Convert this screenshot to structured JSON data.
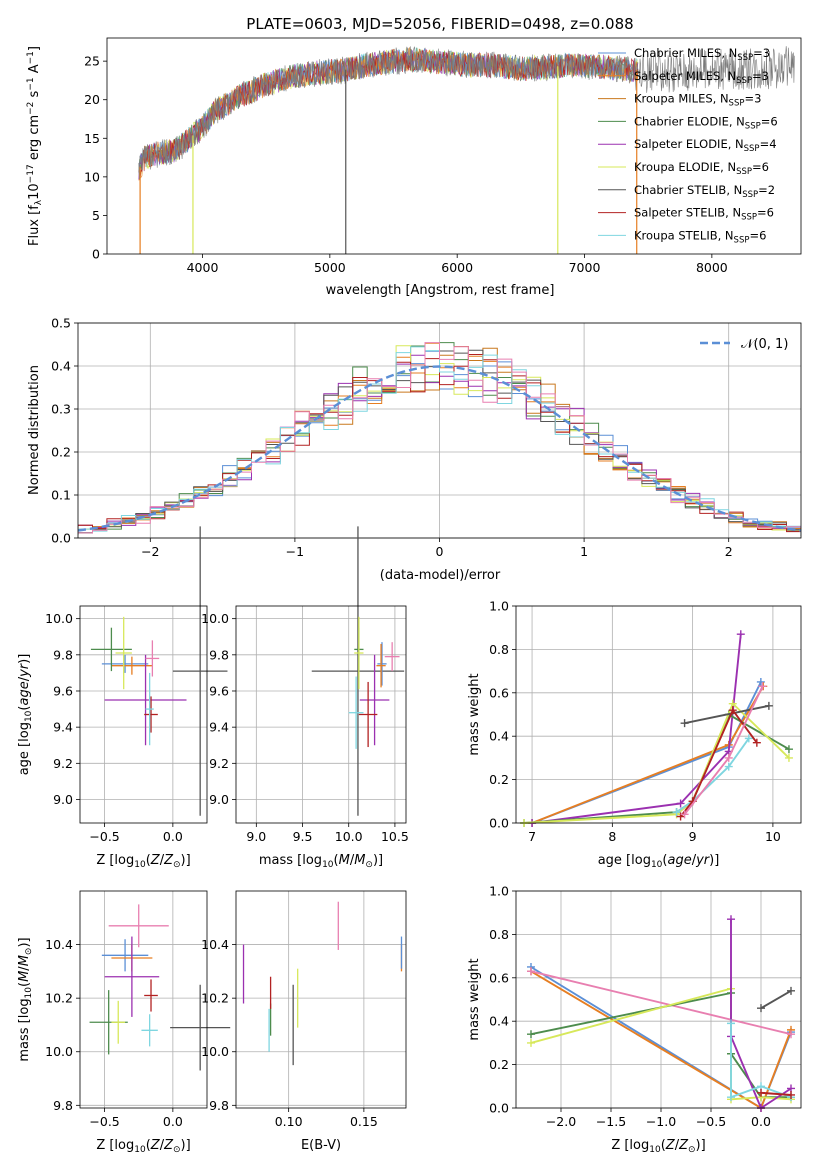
{
  "title": "PLATE=0603, MJD=52056, FIBERID=0498, z=0.088",
  "colors": {
    "Chabrier MILES": "#5b8fd6",
    "Salpeter MILES": "#e67e22",
    "Kroupa MILES": "#c9781e",
    "Chabrier ELODIE": "#4d8c4d",
    "Salpeter ELODIE": "#9b30b0",
    "Kroupa ELODIE": "#d7e85a",
    "Chabrier STELIB": "#555555",
    "Salpeter STELIB": "#b22222",
    "Kroupa STELIB": "#7fd6e0",
    "extra pink": "#e87fb0"
  },
  "chart_data": [
    {
      "type": "line",
      "title": "PLATE=0603, MJD=52056, FIBERID=0498, z=0.088",
      "xlabel": "wavelength [Angstrom, rest frame]",
      "ylabel": "Flux [f_λ 10^-17 erg cm^-2 s^-1 A^-1]",
      "xlim": [
        3250,
        8700
      ],
      "ylim": [
        0,
        28
      ],
      "xticks": [
        4000,
        5000,
        6000,
        7000,
        8000
      ],
      "yticks": [
        0,
        5,
        10,
        15,
        20,
        25
      ],
      "legend_loc": "upper right",
      "legend": [
        {
          "name": "Chabrier MILES",
          "label": "Chabrier MILES, N",
          "sub": "SSP",
          "suffix": "=3"
        },
        {
          "name": "Salpeter MILES",
          "label": "Salpeter MILES, N",
          "sub": "SSP",
          "suffix": "=3"
        },
        {
          "name": "Kroupa MILES",
          "label": "Kroupa MILES, N",
          "sub": "SSP",
          "suffix": "=3"
        },
        {
          "name": "Chabrier ELODIE",
          "label": "Chabrier ELODIE, N",
          "sub": "SSP",
          "suffix": "=6"
        },
        {
          "name": "Salpeter ELODIE",
          "label": "Salpeter ELODIE, N",
          "sub": "SSP",
          "suffix": "=4"
        },
        {
          "name": "Kroupa ELODIE",
          "label": "Kroupa ELODIE, N",
          "sub": "SSP",
          "suffix": "=6"
        },
        {
          "name": "Chabrier STELIB",
          "label": "Chabrier STELIB, N",
          "sub": "SSP",
          "suffix": "=2"
        },
        {
          "name": "Salpeter STELIB",
          "label": "Salpeter STELIB, N",
          "sub": "SSP",
          "suffix": "=6"
        },
        {
          "name": "Kroupa STELIB",
          "label": "Kroupa STELIB, N",
          "sub": "SSP",
          "suffix": "=6"
        }
      ],
      "continuum": [
        [
          3500,
          11
        ],
        [
          3550,
          12.5
        ],
        [
          3650,
          13
        ],
        [
          3800,
          13.5
        ],
        [
          3900,
          15
        ],
        [
          4000,
          16.5
        ],
        [
          4100,
          18.5
        ],
        [
          4200,
          19.5
        ],
        [
          4300,
          20.5
        ],
        [
          4500,
          22
        ],
        [
          4700,
          23
        ],
        [
          4900,
          23.5
        ],
        [
          5100,
          23.8
        ],
        [
          5300,
          24.5
        ],
        [
          5500,
          25
        ],
        [
          5700,
          25.2
        ],
        [
          5900,
          24.8
        ],
        [
          6100,
          24.5
        ],
        [
          6300,
          24.5
        ],
        [
          6500,
          24
        ],
        [
          6700,
          24.2
        ],
        [
          6900,
          24.5
        ],
        [
          7100,
          24.3
        ],
        [
          7300,
          24
        ],
        [
          7400,
          23.8
        ]
      ]
    },
    {
      "type": "step",
      "xlabel": "(data-model)/error",
      "ylabel": "Normed distribution",
      "xlim": [
        -2.5,
        2.5
      ],
      "ylim": [
        0,
        0.5
      ],
      "xticks": [
        -2,
        -1,
        0,
        1,
        2
      ],
      "yticks": [
        0.0,
        0.1,
        0.2,
        0.3,
        0.4,
        0.5
      ],
      "legend": {
        "name": "N(0,1)",
        "label": "𝒩(0, 1)"
      },
      "bin_width": 0.1
    },
    {
      "type": "scatter",
      "xlabel": "Z [log10(Z/Z⊙)]",
      "ylabel": "age [log10(age/yr)]",
      "xlim": [
        -0.68,
        0.25
      ],
      "ylim": [
        8.87,
        10.07
      ],
      "xticks": [
        -0.5,
        0.0
      ],
      "yticks": [
        9.0,
        9.2,
        9.4,
        9.6,
        9.8,
        10.0
      ],
      "points": [
        {
          "s": "Chabrier MILES",
          "x": -0.35,
          "y": 9.75,
          "xerr": 0.17,
          "yerr": 0.05
        },
        {
          "s": "Salpeter MILES",
          "x": -0.3,
          "y": 9.74,
          "xerr": 0.15,
          "yerr": 0.05
        },
        {
          "s": "Chabrier ELODIE",
          "x": -0.45,
          "y": 9.83,
          "xerr": 0.15,
          "yerr": 0.12
        },
        {
          "s": "Kroupa ELODIE",
          "x": -0.36,
          "y": 9.81,
          "xerr": 0.06,
          "yerr": 0.2
        },
        {
          "s": "Salpeter ELODIE",
          "x": -0.2,
          "y": 9.55,
          "xerr": 0.3,
          "yerr": 0.25
        },
        {
          "s": "Salpeter STELIB",
          "x": -0.16,
          "y": 9.47,
          "xerr": 0.05,
          "yerr": 0.1
        },
        {
          "s": "Kroupa STELIB",
          "x": -0.17,
          "y": 9.5,
          "xerr": 0.03,
          "yerr": 0.2
        },
        {
          "s": "extra pink",
          "x": -0.15,
          "y": 9.78,
          "xerr": 0.05,
          "yerr": 0.1
        },
        {
          "s": "Chabrier STELIB",
          "x": 0.2,
          "y": 9.71,
          "xerr": 0.2,
          "yerr": 0.8
        }
      ]
    },
    {
      "type": "scatter",
      "xlabel": "mass [log10(M/M⊙)]",
      "ylabel": "",
      "xlim": [
        8.78,
        10.62
      ],
      "ylim": [
        8.87,
        10.07
      ],
      "xticks": [
        9.0,
        9.5,
        10.0,
        10.5
      ],
      "yticks": [
        9.0,
        9.2,
        9.4,
        9.6,
        9.8,
        10.0
      ],
      "points": [
        {
          "s": "Chabrier STELIB",
          "x": 10.1,
          "y": 9.71,
          "xerr": 0.5,
          "yerr": 0.8
        },
        {
          "s": "Kroupa STELIB",
          "x": 10.08,
          "y": 9.48,
          "xerr": 0.08,
          "yerr": 0.2
        },
        {
          "s": "Chabrier ELODIE",
          "x": 10.11,
          "y": 9.83,
          "xerr": 0.05,
          "yerr": 0.12
        },
        {
          "s": "Kroupa ELODIE",
          "x": 10.11,
          "y": 9.81,
          "xerr": 0.05,
          "yerr": 0.2
        },
        {
          "s": "Salpeter ELODIE",
          "x": 10.28,
          "y": 9.55,
          "xerr": 0.16,
          "yerr": 0.25
        },
        {
          "s": "Salpeter STELIB",
          "x": 10.21,
          "y": 9.47,
          "xerr": 0.1,
          "yerr": 0.18
        },
        {
          "s": "Chabrier MILES",
          "x": 10.36,
          "y": 9.75,
          "xerr": 0.05,
          "yerr": 0.12
        },
        {
          "s": "Salpeter MILES",
          "x": 10.35,
          "y": 9.74,
          "xerr": 0.05,
          "yerr": 0.12
        },
        {
          "s": "extra pink",
          "x": 10.47,
          "y": 9.79,
          "xerr": 0.08,
          "yerr": 0.08
        }
      ]
    },
    {
      "type": "line",
      "xlabel": "age [log10(age/yr)]",
      "ylabel": "mass weight",
      "xlim": [
        6.8,
        10.35
      ],
      "ylim": [
        0,
        1
      ],
      "xticks": [
        7,
        8,
        9,
        10
      ],
      "yticks": [
        0.0,
        0.2,
        0.4,
        0.6,
        0.8,
        1.0
      ],
      "series": [
        {
          "s": "Chabrier MILES",
          "pts": [
            [
              7.0,
              0.0
            ],
            [
              9.45,
              0.35
            ],
            [
              9.85,
              0.65
            ]
          ]
        },
        {
          "s": "Salpeter MILES",
          "pts": [
            [
              7.0,
              0.0
            ],
            [
              9.45,
              0.36
            ],
            [
              9.88,
              0.63
            ]
          ]
        },
        {
          "s": "Salpeter ELODIE",
          "pts": [
            [
              7.0,
              0.0
            ],
            [
              8.85,
              0.09
            ],
            [
              9.45,
              0.33
            ],
            [
              9.6,
              0.87
            ]
          ]
        },
        {
          "s": "Chabrier ELODIE",
          "pts": [
            [
              6.9,
              0.0
            ],
            [
              8.8,
              0.05
            ],
            [
              9.0,
              0.1
            ],
            [
              9.45,
              0.5
            ],
            [
              10.2,
              0.34
            ]
          ]
        },
        {
          "s": "Kroupa ELODIE",
          "pts": [
            [
              6.9,
              0.0
            ],
            [
              8.8,
              0.04
            ],
            [
              9.0,
              0.1
            ],
            [
              9.5,
              0.55
            ],
            [
              10.2,
              0.3
            ]
          ]
        },
        {
          "s": "Chabrier STELIB",
          "pts": [
            [
              8.9,
              0.46
            ],
            [
              9.95,
              0.54
            ]
          ]
        },
        {
          "s": "Kroupa STELIB",
          "pts": [
            [
              8.8,
              0.05
            ],
            [
              9.0,
              0.1
            ],
            [
              9.45,
              0.26
            ],
            [
              9.7,
              0.39
            ]
          ]
        },
        {
          "s": "Salpeter STELIB",
          "pts": [
            [
              8.85,
              0.03
            ],
            [
              9.0,
              0.1
            ],
            [
              9.5,
              0.52
            ],
            [
              9.8,
              0.37
            ]
          ]
        },
        {
          "s": "extra pink",
          "pts": [
            [
              8.9,
              0.04
            ],
            [
              9.45,
              0.3
            ],
            [
              9.87,
              0.63
            ]
          ]
        }
      ]
    },
    {
      "type": "scatter",
      "xlabel": "Z [log10(Z/Z⊙)]",
      "ylabel": "mass [log10(M/M⊙)]",
      "xlim": [
        -0.68,
        0.25
      ],
      "ylim": [
        9.79,
        10.6
      ],
      "xticks": [
        -0.5,
        0.0
      ],
      "yticks": [
        9.8,
        10.0,
        10.2,
        10.4
      ],
      "points": [
        {
          "s": "Chabrier MILES",
          "x": -0.35,
          "y": 10.36,
          "xerr": 0.17,
          "yerr": 0.06
        },
        {
          "s": "Salpeter MILES",
          "x": -0.3,
          "y": 10.35,
          "xerr": 0.15,
          "yerr": 0.05
        },
        {
          "s": "extra pink",
          "x": -0.25,
          "y": 10.47,
          "xerr": 0.22,
          "yerr": 0.08
        },
        {
          "s": "Salpeter ELODIE",
          "x": -0.3,
          "y": 10.28,
          "xerr": 0.2,
          "yerr": 0.15
        },
        {
          "s": "Chabrier ELODIE",
          "x": -0.47,
          "y": 10.11,
          "xerr": 0.14,
          "yerr": 0.12
        },
        {
          "s": "Kroupa ELODIE",
          "x": -0.4,
          "y": 10.11,
          "xerr": 0.05,
          "yerr": 0.08
        },
        {
          "s": "Salpeter STELIB",
          "x": -0.16,
          "y": 10.21,
          "xerr": 0.05,
          "yerr": 0.06
        },
        {
          "s": "Kroupa STELIB",
          "x": -0.17,
          "y": 10.08,
          "xerr": 0.06,
          "yerr": 0.06
        },
        {
          "s": "Chabrier STELIB",
          "x": 0.2,
          "y": 10.09,
          "xerr": 0.22,
          "yerr": 0.16
        }
      ]
    },
    {
      "type": "scatter",
      "xlabel": "E(B-V)",
      "ylabel": "",
      "xlim": [
        0.065,
        0.178
      ],
      "ylim": [
        9.79,
        10.6
      ],
      "xticks": [
        0.05,
        0.1,
        0.15
      ],
      "yticks": [
        9.8,
        10.0,
        10.2,
        10.4
      ],
      "points": [
        {
          "s": "Salpeter ELODIE",
          "x": 0.07,
          "y": 10.29,
          "xerr": 0,
          "yerr": 0.11
        },
        {
          "s": "Kroupa STELIB",
          "x": 0.087,
          "y": 10.08,
          "xerr": 0,
          "yerr": 0.08
        },
        {
          "s": "Chabrier ELODIE",
          "x": 0.088,
          "y": 10.12,
          "xerr": 0,
          "yerr": 0.06
        },
        {
          "s": "Salpeter STELIB",
          "x": 0.088,
          "y": 10.22,
          "xerr": 0,
          "yerr": 0.06
        },
        {
          "s": "Chabrier STELIB",
          "x": 0.103,
          "y": 10.1,
          "xerr": 0,
          "yerr": 0.15
        },
        {
          "s": "Kroupa ELODIE",
          "x": 0.106,
          "y": 10.2,
          "xerr": 0,
          "yerr": 0.11
        },
        {
          "s": "extra pink",
          "x": 0.133,
          "y": 10.47,
          "xerr": 0,
          "yerr": 0.09
        },
        {
          "s": "Salpeter MILES",
          "x": 0.175,
          "y": 10.35,
          "xerr": 0,
          "yerr": 0.05
        },
        {
          "s": "Chabrier MILES",
          "x": 0.175,
          "y": 10.37,
          "xerr": 0,
          "yerr": 0.06
        }
      ]
    },
    {
      "type": "line",
      "xlabel": "Z [log10(Z/Z⊙)]",
      "ylabel": "mass weight",
      "xlim": [
        -2.45,
        0.4
      ],
      "ylim": [
        0,
        1
      ],
      "xticks": [
        -2.0,
        -1.5,
        -1.0,
        -0.5,
        0.0
      ],
      "yticks": [
        0.0,
        0.2,
        0.4,
        0.6,
        0.8,
        1.0
      ],
      "series": [
        {
          "s": "Chabrier MILES",
          "pts": [
            [
              -2.3,
              0.65
            ],
            [
              0.0,
              0.0
            ],
            [
              0.3,
              0.35
            ]
          ]
        },
        {
          "s": "Salpeter MILES",
          "pts": [
            [
              -2.3,
              0.63
            ],
            [
              0.0,
              0.0
            ],
            [
              0.3,
              0.36
            ]
          ]
        },
        {
          "s": "extra pink",
          "pts": [
            [
              -2.3,
              0.63
            ],
            [
              0.3,
              0.34
            ]
          ]
        },
        {
          "s": "Chabrier ELODIE",
          "pts": [
            [
              -2.3,
              0.34
            ],
            [
              -0.3,
              0.53
            ],
            [
              -0.3,
              0.25
            ],
            [
              0.0,
              0.05
            ],
            [
              0.3,
              0.05
            ]
          ]
        },
        {
          "s": "Kroupa ELODIE",
          "pts": [
            [
              -2.3,
              0.3
            ],
            [
              -0.3,
              0.55
            ],
            [
              -0.3,
              0.04
            ],
            [
              0.0,
              0.05
            ],
            [
              0.3,
              0.04
            ]
          ]
        },
        {
          "s": "Salpeter ELODIE",
          "pts": [
            [
              -0.3,
              0.87
            ],
            [
              -0.3,
              0.33
            ],
            [
              0.0,
              0.0
            ],
            [
              0.3,
              0.09
            ]
          ]
        },
        {
          "s": "Chabrier STELIB",
          "pts": [
            [
              0.0,
              0.46
            ],
            [
              0.3,
              0.54
            ]
          ]
        },
        {
          "s": "Kroupa STELIB",
          "pts": [
            [
              -0.3,
              0.39
            ],
            [
              -0.3,
              0.05
            ],
            [
              0.0,
              0.1
            ],
            [
              0.3,
              0.05
            ]
          ]
        },
        {
          "s": "Salpeter STELIB",
          "pts": [
            [
              0.0,
              0.07
            ],
            [
              0.3,
              0.06
            ]
          ]
        }
      ]
    }
  ]
}
